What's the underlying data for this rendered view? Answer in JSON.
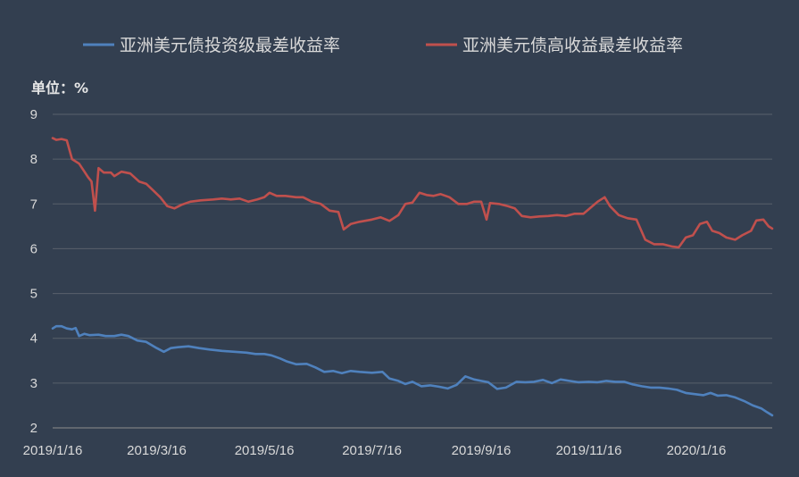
{
  "chart_data": {
    "type": "line",
    "unit_label": "单位：%",
    "ylim": [
      2,
      9
    ],
    "yticks": [
      9,
      8,
      7,
      6,
      5,
      4,
      3,
      2
    ],
    "x_start": "2019/1/16",
    "x_end": "2020/2/28",
    "xticks": [
      "2019/1/16",
      "2019/3/16",
      "2019/5/16",
      "2019/7/16",
      "2019/9/16",
      "2019/11/16",
      "2020/1/16"
    ],
    "legend_position": "top",
    "grid": true,
    "series": [
      {
        "name": "亚洲美元债投资级最差收益率",
        "color": "#4f81bd",
        "points": [
          [
            "2019/1/16",
            4.22
          ],
          [
            "2019/1/18",
            4.27
          ],
          [
            "2019/1/21",
            4.27
          ],
          [
            "2019/1/24",
            4.22
          ],
          [
            "2019/1/27",
            4.2
          ],
          [
            "2019/1/29",
            4.23
          ],
          [
            "2019/1/31",
            4.05
          ],
          [
            "2019/2/3",
            4.1
          ],
          [
            "2019/2/6",
            4.07
          ],
          [
            "2019/2/11",
            4.08
          ],
          [
            "2019/2/15",
            4.05
          ],
          [
            "2019/2/20",
            4.05
          ],
          [
            "2019/2/24",
            4.08
          ],
          [
            "2019/2/28",
            4.05
          ],
          [
            "2019/3/5",
            3.95
          ],
          [
            "2019/3/10",
            3.92
          ],
          [
            "2019/3/16",
            3.78
          ],
          [
            "2019/3/20",
            3.7
          ],
          [
            "2019/3/24",
            3.78
          ],
          [
            "2019/3/28",
            3.8
          ],
          [
            "2019/4/3",
            3.82
          ],
          [
            "2019/4/9",
            3.78
          ],
          [
            "2019/4/15",
            3.75
          ],
          [
            "2019/4/22",
            3.72
          ],
          [
            "2019/4/29",
            3.7
          ],
          [
            "2019/5/6",
            3.68
          ],
          [
            "2019/5/11",
            3.65
          ],
          [
            "2019/5/16",
            3.65
          ],
          [
            "2019/5/20",
            3.62
          ],
          [
            "2019/5/25",
            3.55
          ],
          [
            "2019/5/29",
            3.48
          ],
          [
            "2019/6/3",
            3.42
          ],
          [
            "2019/6/9",
            3.43
          ],
          [
            "2019/6/14",
            3.35
          ],
          [
            "2019/6/19",
            3.25
          ],
          [
            "2019/6/24",
            3.27
          ],
          [
            "2019/6/29",
            3.22
          ],
          [
            "2019/7/4",
            3.27
          ],
          [
            "2019/7/9",
            3.25
          ],
          [
            "2019/7/16",
            3.23
          ],
          [
            "2019/7/22",
            3.25
          ],
          [
            "2019/7/26",
            3.1
          ],
          [
            "2019/7/31",
            3.05
          ],
          [
            "2019/8/4",
            2.98
          ],
          [
            "2019/8/8",
            3.03
          ],
          [
            "2019/8/13",
            2.93
          ],
          [
            "2019/8/18",
            2.95
          ],
          [
            "2019/8/23",
            2.92
          ],
          [
            "2019/8/28",
            2.88
          ],
          [
            "2019/9/2",
            2.96
          ],
          [
            "2019/9/7",
            3.15
          ],
          [
            "2019/9/12",
            3.08
          ],
          [
            "2019/9/16",
            3.05
          ],
          [
            "2019/9/20",
            3.02
          ],
          [
            "2019/9/25",
            2.87
          ],
          [
            "2019/9/30",
            2.9
          ],
          [
            "2019/10/6",
            3.03
          ],
          [
            "2019/10/11",
            3.02
          ],
          [
            "2019/10/16",
            3.03
          ],
          [
            "2019/10/21",
            3.07
          ],
          [
            "2019/10/26",
            3.0
          ],
          [
            "2019/10/31",
            3.08
          ],
          [
            "2019/11/5",
            3.05
          ],
          [
            "2019/11/10",
            3.02
          ],
          [
            "2019/11/16",
            3.03
          ],
          [
            "2019/11/21",
            3.02
          ],
          [
            "2019/11/26",
            3.05
          ],
          [
            "2019/12/1",
            3.03
          ],
          [
            "2019/12/6",
            3.03
          ],
          [
            "2019/12/11",
            2.97
          ],
          [
            "2019/12/16",
            2.93
          ],
          [
            "2019/12/21",
            2.9
          ],
          [
            "2019/12/26",
            2.9
          ],
          [
            "2019/12/31",
            2.88
          ],
          [
            "2020/1/5",
            2.85
          ],
          [
            "2020/1/10",
            2.78
          ],
          [
            "2020/1/16",
            2.75
          ],
          [
            "2020/1/20",
            2.73
          ],
          [
            "2020/1/24",
            2.78
          ],
          [
            "2020/1/28",
            2.72
          ],
          [
            "2020/2/2",
            2.73
          ],
          [
            "2020/2/7",
            2.68
          ],
          [
            "2020/2/12",
            2.6
          ],
          [
            "2020/2/17",
            2.5
          ],
          [
            "2020/2/22",
            2.43
          ],
          [
            "2020/2/25",
            2.35
          ],
          [
            "2020/2/28",
            2.28
          ]
        ]
      },
      {
        "name": "亚洲美元债高收益最差收益率",
        "color": "#c0504d",
        "points": [
          [
            "2019/1/16",
            8.47
          ],
          [
            "2019/1/18",
            8.43
          ],
          [
            "2019/1/21",
            8.45
          ],
          [
            "2019/1/24",
            8.42
          ],
          [
            "2019/1/27",
            8.0
          ],
          [
            "2019/1/31",
            7.9
          ],
          [
            "2019/2/3",
            7.72
          ],
          [
            "2019/2/5",
            7.6
          ],
          [
            "2019/2/7",
            7.5
          ],
          [
            "2019/2/9",
            6.85
          ],
          [
            "2019/2/11",
            7.8
          ],
          [
            "2019/2/14",
            7.7
          ],
          [
            "2019/2/18",
            7.7
          ],
          [
            "2019/2/20",
            7.62
          ],
          [
            "2019/2/24",
            7.72
          ],
          [
            "2019/3/1",
            7.68
          ],
          [
            "2019/3/6",
            7.5
          ],
          [
            "2019/3/10",
            7.45
          ],
          [
            "2019/3/14",
            7.3
          ],
          [
            "2019/3/18",
            7.15
          ],
          [
            "2019/3/22",
            6.95
          ],
          [
            "2019/3/26",
            6.9
          ],
          [
            "2019/3/30",
            6.98
          ],
          [
            "2019/4/4",
            7.05
          ],
          [
            "2019/4/10",
            7.08
          ],
          [
            "2019/4/17",
            7.1
          ],
          [
            "2019/4/22",
            7.12
          ],
          [
            "2019/4/27",
            7.1
          ],
          [
            "2019/5/2",
            7.12
          ],
          [
            "2019/5/7",
            7.05
          ],
          [
            "2019/5/12",
            7.1
          ],
          [
            "2019/5/16",
            7.15
          ],
          [
            "2019/5/19",
            7.25
          ],
          [
            "2019/5/23",
            7.18
          ],
          [
            "2019/5/28",
            7.18
          ],
          [
            "2019/6/3",
            7.15
          ],
          [
            "2019/6/7",
            7.15
          ],
          [
            "2019/6/12",
            7.05
          ],
          [
            "2019/6/17",
            7.0
          ],
          [
            "2019/6/22",
            6.85
          ],
          [
            "2019/6/27",
            6.82
          ],
          [
            "2019/6/30",
            6.43
          ],
          [
            "2019/7/4",
            6.55
          ],
          [
            "2019/7/9",
            6.6
          ],
          [
            "2019/7/16",
            6.65
          ],
          [
            "2019/7/21",
            6.7
          ],
          [
            "2019/7/26",
            6.62
          ],
          [
            "2019/7/31",
            6.75
          ],
          [
            "2019/8/4",
            7.0
          ],
          [
            "2019/8/8",
            7.03
          ],
          [
            "2019/8/12",
            7.25
          ],
          [
            "2019/8/16",
            7.2
          ],
          [
            "2019/8/20",
            7.18
          ],
          [
            "2019/8/24",
            7.22
          ],
          [
            "2019/8/29",
            7.15
          ],
          [
            "2019/9/3",
            7.0
          ],
          [
            "2019/9/8",
            7.0
          ],
          [
            "2019/9/12",
            7.05
          ],
          [
            "2019/9/16",
            7.05
          ],
          [
            "2019/9/19",
            6.65
          ],
          [
            "2019/9/21",
            7.02
          ],
          [
            "2019/9/26",
            7.0
          ],
          [
            "2019/10/1",
            6.95
          ],
          [
            "2019/10/5",
            6.9
          ],
          [
            "2019/10/9",
            6.73
          ],
          [
            "2019/10/14",
            6.7
          ],
          [
            "2019/10/19",
            6.72
          ],
          [
            "2019/10/24",
            6.73
          ],
          [
            "2019/10/29",
            6.75
          ],
          [
            "2019/11/3",
            6.73
          ],
          [
            "2019/11/8",
            6.78
          ],
          [
            "2019/11/13",
            6.78
          ],
          [
            "2019/11/16",
            6.88
          ],
          [
            "2019/11/21",
            7.05
          ],
          [
            "2019/11/25",
            7.15
          ],
          [
            "2019/11/28",
            6.95
          ],
          [
            "2019/12/3",
            6.75
          ],
          [
            "2019/12/8",
            6.68
          ],
          [
            "2019/12/13",
            6.65
          ],
          [
            "2019/12/18",
            6.2
          ],
          [
            "2019/12/23",
            6.1
          ],
          [
            "2019/12/28",
            6.1
          ],
          [
            "2020/1/2",
            6.05
          ],
          [
            "2020/1/6",
            6.03
          ],
          [
            "2020/1/10",
            6.25
          ],
          [
            "2020/1/14",
            6.3
          ],
          [
            "2020/1/18",
            6.55
          ],
          [
            "2020/1/22",
            6.6
          ],
          [
            "2020/1/25",
            6.4
          ],
          [
            "2020/1/29",
            6.35
          ],
          [
            "2020/2/2",
            6.25
          ],
          [
            "2020/2/7",
            6.2
          ],
          [
            "2020/2/11",
            6.3
          ],
          [
            "2020/2/16",
            6.4
          ],
          [
            "2020/2/19",
            6.63
          ],
          [
            "2020/2/23",
            6.65
          ],
          [
            "2020/2/26",
            6.5
          ],
          [
            "2020/2/28",
            6.45
          ]
        ]
      }
    ]
  }
}
